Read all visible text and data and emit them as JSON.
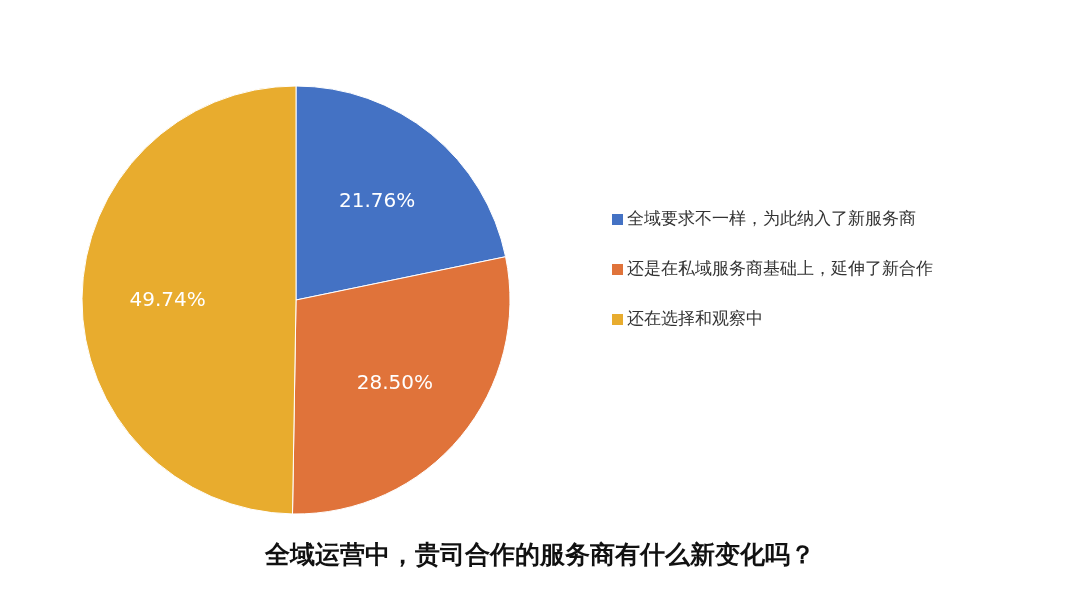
{
  "chart_data": {
    "type": "pie",
    "title": "全域运营中，贵司合作的服务商有什么新变化吗？",
    "categories": [
      "全域要求不一样，为此纳入了新服务商",
      "还是在私域服务商基础上，延伸了新合作",
      "还在选择和观察中"
    ],
    "values": [
      21.76,
      28.5,
      49.74
    ],
    "colors": [
      "#4472c4",
      "#e0733a",
      "#e8ac2e"
    ],
    "value_labels": [
      "21.76%",
      "28.50%",
      "49.74%"
    ],
    "legend": "right"
  }
}
